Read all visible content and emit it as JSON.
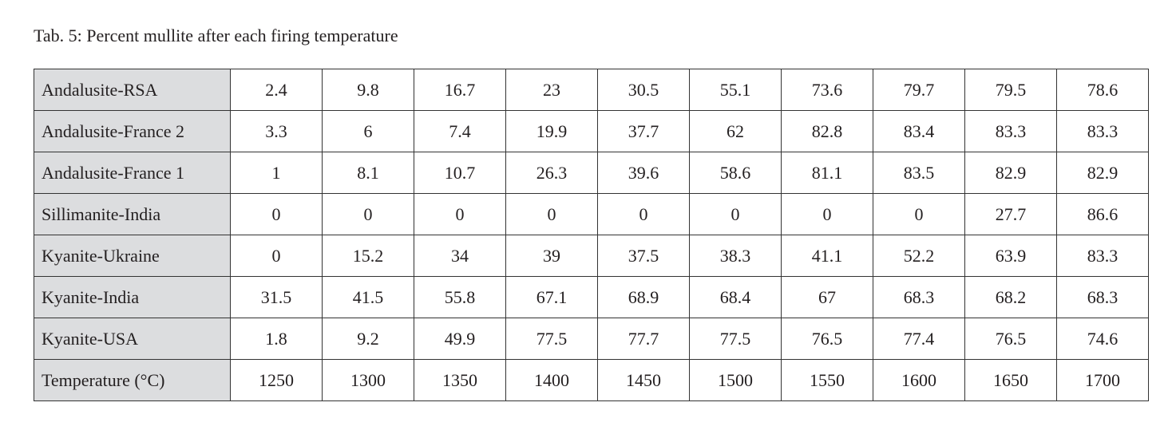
{
  "header": {
    "title": "Tab. 5: Percent mullite after each firing temperature"
  },
  "table": {
    "rows": [
      [
        "Andalusite-RSA",
        2.4,
        9.8,
        16.7,
        23,
        30.5,
        55.1,
        73.6,
        79.7,
        79.5,
        78.6
      ],
      [
        "Andalusite-France 2",
        3.3,
        6,
        7.4,
        19.9,
        37.7,
        62,
        82.8,
        83.4,
        83.3,
        83.3
      ],
      [
        "Andalusite-France 1",
        1,
        8.1,
        10.7,
        26.3,
        39.6,
        58.6,
        81.1,
        83.5,
        82.9,
        82.9
      ],
      [
        "Sillimanite-India",
        0,
        0,
        0,
        0,
        0,
        0,
        0,
        0,
        27.7,
        86.6
      ],
      [
        "Kyanite-Ukraine",
        0,
        15.2,
        34,
        39,
        37.5,
        38.3,
        41.1,
        52.2,
        63.9,
        83.3
      ],
      [
        "Kyanite-India",
        31.5,
        41.5,
        55.8,
        67.1,
        68.9,
        68.4,
        67,
        68.3,
        68.2,
        68.3
      ],
      [
        "Kyanite-USA",
        1.8,
        9.2,
        49.9,
        77.5,
        77.7,
        77.5,
        76.5,
        77.4,
        76.5,
        74.6
      ],
      [
        "Temperature (°C)",
        1250,
        1300,
        1350,
        1400,
        1450,
        1500,
        1550,
        1600,
        1650,
        1700
      ]
    ]
  }
}
